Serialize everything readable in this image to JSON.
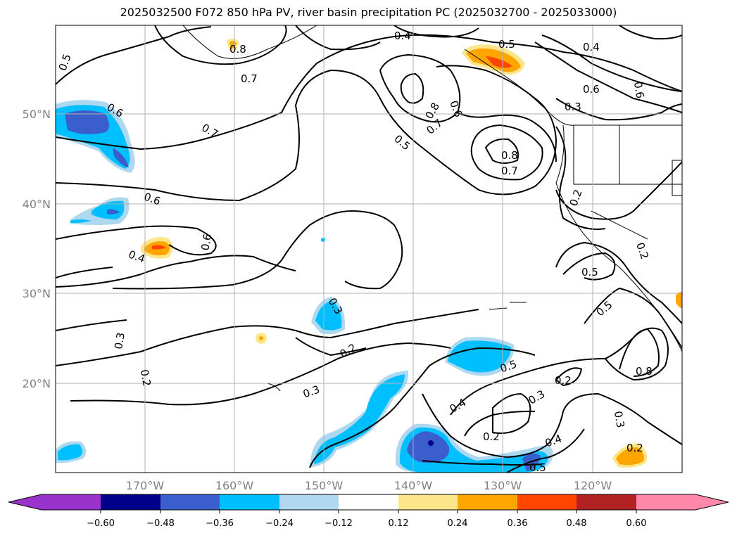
{
  "title": "2025032500 F072 850 hPa PV, river basin precipitation PC (2025032700 - 2025033000)",
  "lat_labels": [
    "50°N",
    "40°N",
    "30°N",
    "20°N"
  ],
  "lon_labels": [
    "170°W",
    "160°W",
    "150°W",
    "140°W",
    "130°W",
    "120°W"
  ],
  "contour_labels": [
    "0.5",
    "0.6",
    "0.7",
    "0.6",
    "0.4",
    "0.6",
    "0.3",
    "0.2",
    "0.8",
    "0.7",
    "0.4",
    "0.5",
    "0.8",
    "0.6",
    "0.7",
    "0.5",
    "0.8",
    "0.7",
    "0.4",
    "0.6",
    "0.3",
    "0.6",
    "0.2",
    "0.5",
    "0.5",
    "0.8",
    "0.3",
    "0.2",
    "0.5",
    "0.3",
    "0.2",
    "0.4",
    "0.2",
    "0.3",
    "0.4",
    "0.5",
    "0.2",
    "0.3",
    "0.2"
  ],
  "colorbar": {
    "ticks": [
      "−0.60",
      "−0.48",
      "−0.36",
      "−0.24",
      "−0.12",
      "0.12",
      "0.24",
      "0.36",
      "0.48",
      "0.60"
    ],
    "colors": [
      "#9933cc",
      "#00008b",
      "#3a5fcd",
      "#00bfff",
      "#add8f0",
      "#ffffff",
      "#fde68a",
      "#ffa500",
      "#ff4500",
      "#b22222",
      "#ff88aa"
    ]
  },
  "map": {
    "lat_range": [
      10,
      60
    ],
    "lon_range": [
      -180,
      -110
    ],
    "shading_colors": {
      "strong_neg": "#3a5fcd",
      "neg": "#00bfff",
      "weak_neg": "#add8f0",
      "weak_pos": "#fde68a",
      "pos": "#ffa500",
      "strong_pos": "#ff4500",
      "deep_neg": "#00008b"
    }
  }
}
